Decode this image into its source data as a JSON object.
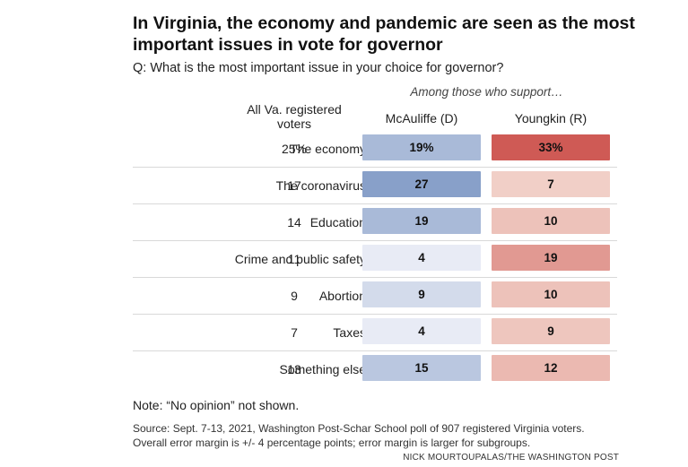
{
  "title": "In Virginia, the economy and pandemic are seen as the most important issues in vote for governor",
  "question": "Q: What is the most important issue in your choice for governor?",
  "among_label": "Among those who support…",
  "col_all": "All Va. registered voters",
  "col_mcauliffe": "McAuliffe (D)",
  "col_youngkin": "Youngkin (R)",
  "colors": {
    "mcauliffe_scale": [
      "#e8ebf5",
      "#6f8cbd"
    ],
    "youngkin_scale": [
      "#f5ddd4",
      "#cf5a55"
    ]
  },
  "rows": [
    {
      "issue": "The economy",
      "all_text": "25%",
      "mc_text": "19%",
      "yk_text": "33%"
    },
    {
      "issue": "The coronavirus",
      "all_text": "17",
      "mc_text": "27",
      "yk_text": "7"
    },
    {
      "issue": "Education",
      "all_text": "14",
      "mc_text": "19",
      "yk_text": "10"
    },
    {
      "issue": "Crime and public safety",
      "all_text": "11",
      "mc_text": "4",
      "yk_text": "19"
    },
    {
      "issue": "Abortion",
      "all_text": "9",
      "mc_text": "9",
      "yk_text": "10"
    },
    {
      "issue": "Taxes",
      "all_text": "7",
      "mc_text": "4",
      "yk_text": "9"
    },
    {
      "issue": "Something else",
      "all_text": "13",
      "mc_text": "15",
      "yk_text": "12"
    }
  ],
  "note": "Note: “No opinion” not shown.",
  "source_line1": "Source: Sept. 7-13, 2021, Washington Post-Schar School poll of 907 registered Virginia voters.",
  "source_line2": "Overall error margin is +/- 4 percentage points; error margin is larger for subgroups.",
  "credit": "NICK MOURTOUPALAS/THE WASHINGTON POST",
  "chart_data": {
    "type": "table",
    "title": "In Virginia, the economy and pandemic are seen as the most important issues in vote for governor",
    "categories": [
      "The economy",
      "The coronavirus",
      "Education",
      "Crime and public safety",
      "Abortion",
      "Taxes",
      "Something else"
    ],
    "series": [
      {
        "name": "All Va. registered voters",
        "values": [
          25,
          17,
          14,
          11,
          9,
          7,
          13
        ]
      },
      {
        "name": "McAuliffe (D)",
        "values": [
          19,
          27,
          19,
          4,
          9,
          4,
          15
        ]
      },
      {
        "name": "Youngkin (R)",
        "values": [
          33,
          7,
          10,
          19,
          10,
          9,
          12
        ]
      }
    ]
  }
}
